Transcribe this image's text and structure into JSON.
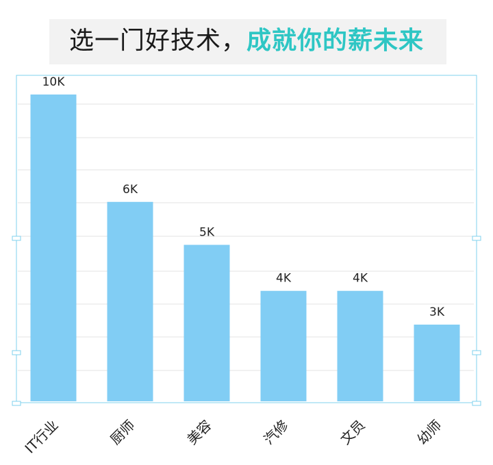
{
  "title": {
    "part1": "选一门好技术，",
    "part2": "成就你的薪未来"
  },
  "colors": {
    "bar": "#81cdf4",
    "title_accent": "#2ec6c4",
    "frame": "#7fd0ee",
    "grid": "#e3e3e3"
  },
  "chart_data": {
    "type": "bar",
    "title": "选一门好技术，成就你的薪未来",
    "categories": [
      "IT行业",
      "厨师",
      "美容",
      "汽修",
      "文员",
      "幼师"
    ],
    "values": [
      10,
      6.5,
      5.1,
      3.6,
      3.6,
      2.5
    ],
    "data_labels": [
      "10K",
      "6K",
      "5K",
      "4K",
      "4K",
      "3K"
    ],
    "ylim": [
      0,
      10.5
    ],
    "grid": true,
    "legend": "none"
  }
}
